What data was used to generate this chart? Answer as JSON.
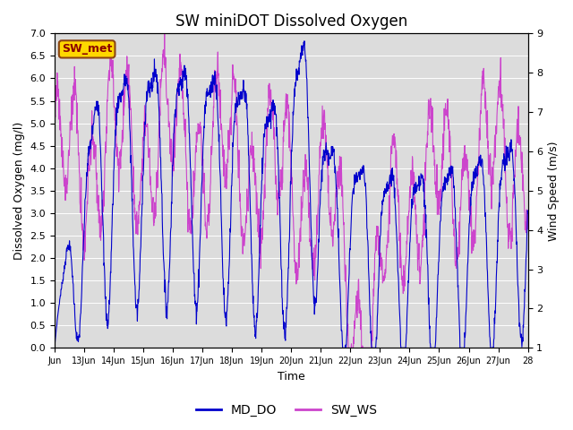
{
  "title": "SW miniDOT Dissolved Oxygen",
  "xlabel": "Time",
  "ylabel_left": "Dissolved Oxygen (mg/l)",
  "ylabel_right": "Wind Speed (m/s)",
  "ylim_left": [
    0.0,
    7.0
  ],
  "ylim_right": [
    1.0,
    9.0
  ],
  "yticks_left": [
    0.0,
    0.5,
    1.0,
    1.5,
    2.0,
    2.5,
    3.0,
    3.5,
    4.0,
    4.5,
    5.0,
    5.5,
    6.0,
    6.5,
    7.0
  ],
  "yticks_right": [
    1.0,
    2.0,
    3.0,
    4.0,
    5.0,
    6.0,
    7.0,
    8.0,
    9.0
  ],
  "annotation_text": "SW_met",
  "annotation_color": "#8B0000",
  "annotation_bg": "#FFD700",
  "annotation_border": "#8B4513",
  "line_color_do": "#0000CC",
  "line_color_ws": "#CC44CC",
  "legend_labels": [
    "MD_DO",
    "SW_WS"
  ],
  "background_color": "#DCDCDC",
  "fig_color": "#FFFFFF",
  "grid_color": "#FFFFFF",
  "xlim": [
    12.0,
    28.0
  ],
  "xtick_positions": [
    12.0,
    13.0,
    14.0,
    15.0,
    16.0,
    17.0,
    18.0,
    19.0,
    20.0,
    21.0,
    22.0,
    23.0,
    24.0,
    25.0,
    26.0,
    27.0,
    28.0
  ],
  "xtick_labels": [
    "Jun",
    "13Jun",
    "14Jun",
    "15Jun",
    "16Jun",
    "17Jun",
    "18Jun",
    "19Jun",
    "20Jun",
    "21Jun",
    "22Jun",
    "23Jun",
    "24Jun",
    "25Jun",
    "26Jun",
    "27Jun",
    "28"
  ],
  "n_points": 1500
}
